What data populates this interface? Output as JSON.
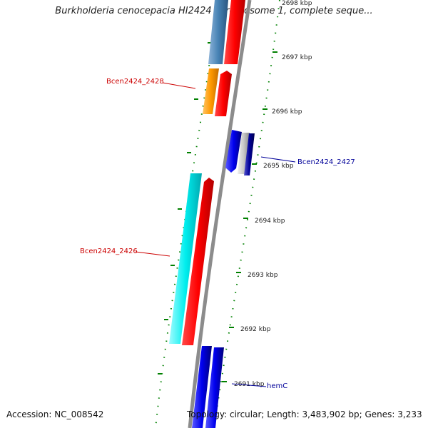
{
  "title": "Burkholderia cenocepacia HI2424 chromosome 1, complete seque...",
  "footer": {
    "accession": "Accession: NC_008542",
    "summary": "Topology: circular; Length: 3,483,902 bp; Genes: 3,233"
  },
  "scale": [
    {
      "label": "2698 kbp"
    },
    {
      "label": "2697 kbp"
    },
    {
      "label": "2696 kbp"
    },
    {
      "label": "2695 kbp"
    },
    {
      "label": "2694 kbp"
    },
    {
      "label": "2693 kbp"
    },
    {
      "label": "2692 kbp"
    },
    {
      "label": "2691 kbp"
    }
  ],
  "genes": [
    {
      "label": "Bcen2424_2428",
      "color": "#cc0000"
    },
    {
      "label": "Bcen2424_2427",
      "color": "#000099"
    },
    {
      "label": "Bcen2424_2426",
      "color": "#cc0000"
    },
    {
      "label": "hemC",
      "color": "#000099"
    }
  ],
  "colors": {
    "backbone": "#8c8c8c",
    "tick": "#008000",
    "forward_feature": "#ff0000",
    "reverse_feature": "#0000ee",
    "cds_cyan": "#00e5ee",
    "cds_orange": "#ff9900",
    "cds_steelblue": "#4682b4"
  }
}
